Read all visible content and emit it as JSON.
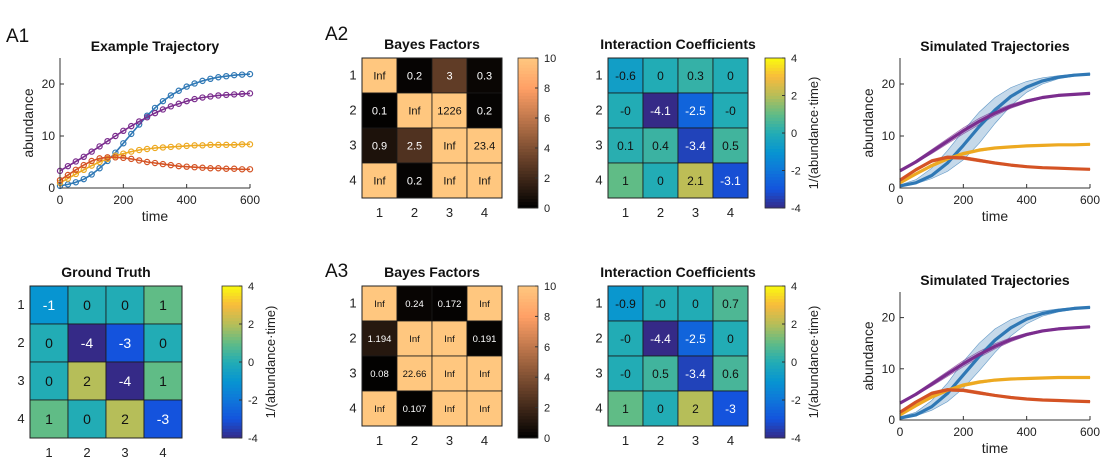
{
  "panel_labels": [
    "A1",
    "A2",
    "A3"
  ],
  "colorbar_units": "1/(abundance·time)",
  "chart_data": [
    {
      "type": "line",
      "title": "Example Trajectory",
      "xlabel": "time",
      "ylabel": "abundance",
      "xlim": [
        0,
        600
      ],
      "ylim": [
        0,
        25
      ],
      "xticks": [
        0,
        200,
        400,
        600
      ],
      "yticks": [
        0,
        10,
        20
      ],
      "grid": false,
      "series": [
        {
          "color": "#2f78b5",
          "x": [
            0,
            25,
            50,
            75,
            100,
            125,
            150,
            175,
            200,
            225,
            250,
            275,
            300,
            325,
            350,
            375,
            400,
            425,
            450,
            475,
            500,
            525,
            550,
            575,
            600
          ],
          "y": [
            0.4,
            0.7,
            1.1,
            1.7,
            2.6,
            3.8,
            5.2,
            6.8,
            8.6,
            10.4,
            12.2,
            13.9,
            15.4,
            16.7,
            17.8,
            18.7,
            19.5,
            20.1,
            20.6,
            21.0,
            21.3,
            21.5,
            21.7,
            21.8,
            21.9
          ]
        },
        {
          "color": "#7b2d8e",
          "x": [
            0,
            25,
            50,
            75,
            100,
            125,
            150,
            175,
            200,
            225,
            250,
            275,
            300,
            325,
            350,
            375,
            400,
            425,
            450,
            475,
            500,
            525,
            550,
            575,
            600
          ],
          "y": [
            3.3,
            4.2,
            5.1,
            6.0,
            7.0,
            8.0,
            9.0,
            10.0,
            11.0,
            11.9,
            12.8,
            13.6,
            14.4,
            15.1,
            15.7,
            16.2,
            16.7,
            17.1,
            17.4,
            17.6,
            17.8,
            17.9,
            18.0,
            18.1,
            18.2
          ]
        },
        {
          "color": "#eda921",
          "x": [
            0,
            25,
            50,
            75,
            100,
            125,
            150,
            175,
            200,
            225,
            250,
            275,
            300,
            325,
            350,
            375,
            400,
            425,
            450,
            475,
            500,
            525,
            550,
            575,
            600
          ],
          "y": [
            1.0,
            1.8,
            2.7,
            3.5,
            4.3,
            5.0,
            5.6,
            6.2,
            6.6,
            7.0,
            7.3,
            7.5,
            7.7,
            7.8,
            7.9,
            8.0,
            8.1,
            8.2,
            8.2,
            8.3,
            8.3,
            8.3,
            8.3,
            8.4,
            8.4
          ]
        },
        {
          "color": "#d45324",
          "x": [
            0,
            25,
            50,
            75,
            100,
            125,
            150,
            175,
            200,
            225,
            250,
            275,
            300,
            325,
            350,
            375,
            400,
            425,
            450,
            475,
            500,
            525,
            550,
            575,
            600
          ],
          "y": [
            1.5,
            2.5,
            3.5,
            4.4,
            5.2,
            5.7,
            5.9,
            5.9,
            5.8,
            5.6,
            5.3,
            5.0,
            4.8,
            4.6,
            4.4,
            4.2,
            4.1,
            4.0,
            3.9,
            3.8,
            3.8,
            3.7,
            3.7,
            3.6,
            3.6
          ]
        }
      ]
    },
    {
      "type": "heatmap",
      "title": "Ground Truth",
      "colormap": "parula",
      "clim": [
        -4,
        4
      ],
      "colorbar_ticks": [
        -4,
        -2,
        0,
        2,
        4
      ],
      "row_labels": [
        "1",
        "2",
        "3",
        "4"
      ],
      "col_labels": [
        "1",
        "2",
        "3",
        "4"
      ],
      "values": [
        [
          -1,
          0,
          0,
          1
        ],
        [
          0,
          -4,
          -3,
          0
        ],
        [
          0,
          2,
          -4,
          1
        ],
        [
          1,
          0,
          2,
          -3
        ]
      ],
      "cell_labels": [
        [
          "-1",
          "0",
          "0",
          "1"
        ],
        [
          "0",
          "-4",
          "-3",
          "0"
        ],
        [
          "0",
          "2",
          "-4",
          "1"
        ],
        [
          "1",
          "0",
          "2",
          "-3"
        ]
      ]
    },
    {
      "type": "heatmap",
      "title": "Bayes Factors",
      "colormap": "copper",
      "clim": [
        0,
        10
      ],
      "colorbar_ticks": [
        0,
        2,
        4,
        6,
        8,
        10
      ],
      "row_labels": [
        "1",
        "2",
        "3",
        "4"
      ],
      "col_labels": [
        "1",
        "2",
        "3",
        "4"
      ],
      "values": [
        [
          10,
          0.2,
          3,
          0.3
        ],
        [
          0.1,
          10,
          10,
          0.2
        ],
        [
          0.9,
          2.5,
          10,
          10
        ],
        [
          10,
          0.2,
          10,
          10
        ]
      ],
      "cell_labels": [
        [
          "Inf",
          "0.2",
          "3",
          "0.3"
        ],
        [
          "0.1",
          "Inf",
          "1226",
          "0.2"
        ],
        [
          "0.9",
          "2.5",
          "Inf",
          "23.4"
        ],
        [
          "Inf",
          "0.2",
          "Inf",
          "Inf"
        ]
      ]
    },
    {
      "type": "heatmap",
      "title": "Interaction Coefficients",
      "colormap": "parula",
      "clim": [
        -4,
        4
      ],
      "colorbar_ticks": [
        -4,
        -2,
        0,
        2,
        4
      ],
      "row_labels": [
        "1",
        "2",
        "3",
        "4"
      ],
      "col_labels": [
        "1",
        "2",
        "3",
        "4"
      ],
      "values": [
        [
          -0.6,
          0,
          0.3,
          0
        ],
        [
          0,
          -4.1,
          -2.5,
          0
        ],
        [
          0.1,
          0.4,
          -3.4,
          0.5
        ],
        [
          1,
          0,
          2.1,
          -3.1
        ]
      ],
      "cell_labels": [
        [
          "-0.6",
          "0",
          "0.3",
          "0"
        ],
        [
          "-0",
          "-4.1",
          "-2.5",
          "-0"
        ],
        [
          "0.1",
          "0.4",
          "-3.4",
          "0.5"
        ],
        [
          "1",
          "0",
          "2.1",
          "-3.1"
        ]
      ]
    },
    {
      "type": "line",
      "title": "Simulated Trajectories",
      "xlabel": "time",
      "ylabel": "abundance",
      "xlim": [
        0,
        600
      ],
      "ylim": [
        0,
        25
      ],
      "xticks": [
        0,
        200,
        400,
        600
      ],
      "yticks": [
        0,
        10,
        20
      ],
      "grid": false,
      "series": [
        {
          "color": "#2f78b5",
          "x": [
            0,
            50,
            100,
            150,
            200,
            250,
            300,
            350,
            400,
            450,
            500,
            550,
            600
          ],
          "y": [
            0.4,
            1.0,
            2.4,
            4.8,
            8.2,
            11.8,
            15.0,
            17.6,
            19.4,
            20.6,
            21.3,
            21.7,
            21.9
          ],
          "lower": [
            0.3,
            0.8,
            1.8,
            3.2,
            5.4,
            8.6,
            12.4,
            15.8,
            18.4,
            20.0,
            21.0,
            21.5,
            21.8
          ],
          "upper": [
            0.6,
            1.6,
            3.8,
            7.2,
            11.0,
            14.6,
            17.4,
            19.3,
            20.5,
            21.2,
            21.6,
            21.9,
            22.0
          ]
        },
        {
          "color": "#7b2d8e",
          "x": [
            0,
            50,
            100,
            150,
            200,
            250,
            300,
            350,
            400,
            450,
            500,
            550,
            600
          ],
          "y": [
            3.3,
            5.0,
            7.0,
            9.0,
            11.0,
            12.8,
            14.4,
            15.7,
            16.7,
            17.4,
            17.8,
            18.0,
            18.2
          ],
          "lower": [
            3.2,
            4.8,
            6.6,
            8.5,
            10.4,
            12.2,
            13.9,
            15.3,
            16.4,
            17.2,
            17.6,
            17.9,
            18.1
          ],
          "upper": [
            3.4,
            5.3,
            7.4,
            9.5,
            11.6,
            13.4,
            14.9,
            16.1,
            17.0,
            17.6,
            18.0,
            18.2,
            18.3
          ]
        },
        {
          "color": "#eda921",
          "x": [
            0,
            50,
            100,
            150,
            200,
            250,
            300,
            350,
            400,
            450,
            500,
            550,
            600
          ],
          "y": [
            1.0,
            2.7,
            4.3,
            5.6,
            6.6,
            7.3,
            7.7,
            7.9,
            8.1,
            8.2,
            8.3,
            8.3,
            8.4
          ],
          "lower": [
            0.9,
            2.5,
            4.0,
            5.3,
            6.3,
            7.0,
            7.5,
            7.8,
            8.0,
            8.1,
            8.2,
            8.3,
            8.3
          ],
          "upper": [
            1.1,
            2.9,
            4.6,
            5.9,
            6.9,
            7.5,
            7.9,
            8.1,
            8.2,
            8.3,
            8.4,
            8.4,
            8.5
          ]
        },
        {
          "color": "#d45324",
          "x": [
            0,
            50,
            100,
            150,
            200,
            250,
            300,
            350,
            400,
            450,
            500,
            550,
            600
          ],
          "y": [
            1.5,
            3.5,
            5.2,
            5.9,
            5.8,
            5.3,
            4.8,
            4.4,
            4.1,
            3.9,
            3.8,
            3.7,
            3.6
          ],
          "lower": [
            1.4,
            3.3,
            4.9,
            5.6,
            5.5,
            5.0,
            4.6,
            4.2,
            4.0,
            3.8,
            3.7,
            3.6,
            3.5
          ],
          "upper": [
            1.6,
            3.7,
            5.5,
            6.2,
            6.1,
            5.6,
            5.0,
            4.6,
            4.3,
            4.0,
            3.9,
            3.8,
            3.7
          ]
        }
      ]
    },
    {
      "type": "heatmap",
      "title": "Bayes Factors",
      "colormap": "copper",
      "clim": [
        0,
        10
      ],
      "colorbar_ticks": [
        0,
        2,
        4,
        6,
        8,
        10
      ],
      "row_labels": [
        "1",
        "2",
        "3",
        "4"
      ],
      "col_labels": [
        "1",
        "2",
        "3",
        "4"
      ],
      "values": [
        [
          10,
          0.24,
          0.172,
          10
        ],
        [
          1.194,
          10,
          10,
          0.191
        ],
        [
          0.08,
          10,
          10,
          10
        ],
        [
          10,
          0.107,
          10,
          10
        ]
      ],
      "cell_labels": [
        [
          "Inf",
          "0.24",
          "0.172",
          "Inf"
        ],
        [
          "1.194",
          "Inf",
          "Inf",
          "0.191"
        ],
        [
          "0.08",
          "22.66",
          "Inf",
          "Inf"
        ],
        [
          "Inf",
          "0.107",
          "Inf",
          "Inf"
        ]
      ]
    },
    {
      "type": "heatmap",
      "title": "Interaction Coefficients",
      "colormap": "parula",
      "clim": [
        -4,
        4
      ],
      "colorbar_ticks": [
        -4,
        -2,
        0,
        2,
        4
      ],
      "row_labels": [
        "1",
        "2",
        "3",
        "4"
      ],
      "col_labels": [
        "1",
        "2",
        "3",
        "4"
      ],
      "values": [
        [
          -0.9,
          0,
          0,
          0.7
        ],
        [
          0,
          -4.4,
          -2.5,
          0
        ],
        [
          0,
          0.5,
          -3.4,
          0.6
        ],
        [
          1,
          0,
          2,
          -3
        ]
      ],
      "cell_labels": [
        [
          "-0.9",
          "-0",
          "0",
          "0.7"
        ],
        [
          "-0",
          "-4.4",
          "-2.5",
          "0"
        ],
        [
          "-0",
          "0.5",
          "-3.4",
          "0.6"
        ],
        [
          "1",
          "0",
          "2",
          "-3"
        ]
      ]
    },
    {
      "type": "line",
      "title": "Simulated Trajectories",
      "xlabel": "time",
      "ylabel": "abundance",
      "xlim": [
        0,
        600
      ],
      "ylim": [
        0,
        25
      ],
      "xticks": [
        0,
        200,
        400,
        600
      ],
      "yticks": [
        0,
        10,
        20
      ],
      "grid": false,
      "series": [
        {
          "color": "#2f78b5",
          "x": [
            0,
            50,
            100,
            150,
            200,
            250,
            300,
            350,
            400,
            450,
            500,
            550,
            600
          ],
          "y": [
            0.4,
            1.0,
            2.6,
            5.2,
            8.8,
            12.4,
            15.6,
            18.0,
            19.7,
            20.8,
            21.4,
            21.8,
            22.0
          ],
          "lower": [
            0.3,
            0.8,
            1.9,
            3.6,
            6.2,
            9.6,
            13.2,
            16.4,
            18.8,
            20.3,
            21.1,
            21.6,
            21.9
          ],
          "upper": [
            0.6,
            1.5,
            3.8,
            7.2,
            11.4,
            15.0,
            17.8,
            19.6,
            20.7,
            21.3,
            21.7,
            22.0,
            22.1
          ]
        },
        {
          "color": "#7b2d8e",
          "x": [
            0,
            50,
            100,
            150,
            200,
            250,
            300,
            350,
            400,
            450,
            500,
            550,
            600
          ],
          "y": [
            3.3,
            5.0,
            7.0,
            9.0,
            11.0,
            12.8,
            14.4,
            15.7,
            16.7,
            17.4,
            17.8,
            18.0,
            18.2
          ],
          "lower": [
            3.2,
            4.8,
            6.6,
            8.5,
            10.4,
            12.2,
            13.9,
            15.3,
            16.4,
            17.2,
            17.6,
            17.9,
            18.1
          ],
          "upper": [
            3.4,
            5.3,
            7.4,
            9.5,
            11.6,
            13.4,
            14.9,
            16.1,
            17.0,
            17.6,
            18.0,
            18.2,
            18.3
          ]
        },
        {
          "color": "#eda921",
          "x": [
            0,
            50,
            100,
            150,
            200,
            250,
            300,
            350,
            400,
            450,
            500,
            550,
            600
          ],
          "y": [
            1.0,
            2.8,
            4.5,
            5.8,
            6.8,
            7.4,
            7.8,
            8.0,
            8.1,
            8.2,
            8.3,
            8.3,
            8.3
          ],
          "lower": [
            0.9,
            2.6,
            4.2,
            5.5,
            6.5,
            7.1,
            7.6,
            7.9,
            8.0,
            8.1,
            8.2,
            8.2,
            8.2
          ],
          "upper": [
            1.1,
            3.0,
            4.8,
            6.1,
            7.1,
            7.7,
            8.0,
            8.2,
            8.3,
            8.3,
            8.4,
            8.4,
            8.4
          ]
        },
        {
          "color": "#d45324",
          "x": [
            0,
            50,
            100,
            150,
            200,
            250,
            300,
            350,
            400,
            450,
            500,
            550,
            600
          ],
          "y": [
            1.5,
            3.5,
            5.2,
            5.9,
            5.8,
            5.3,
            4.8,
            4.4,
            4.1,
            3.9,
            3.8,
            3.7,
            3.6
          ],
          "lower": [
            1.4,
            3.3,
            4.9,
            5.6,
            5.5,
            5.0,
            4.6,
            4.2,
            4.0,
            3.8,
            3.7,
            3.6,
            3.5
          ],
          "upper": [
            1.6,
            3.7,
            5.5,
            6.2,
            6.1,
            5.6,
            5.0,
            4.6,
            4.3,
            4.0,
            3.9,
            3.8,
            3.7
          ]
        }
      ]
    }
  ]
}
